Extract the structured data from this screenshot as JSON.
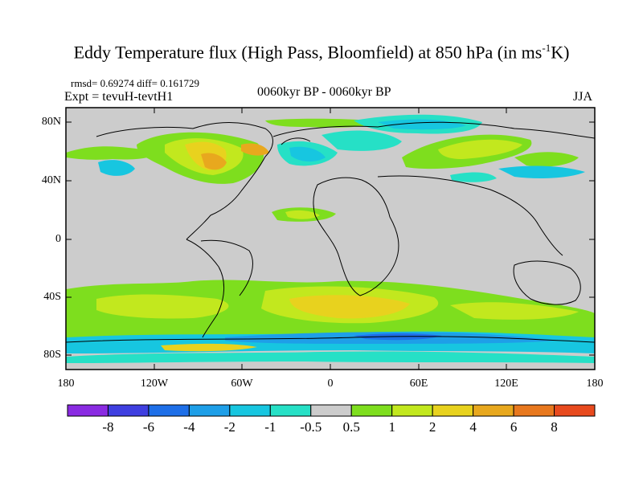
{
  "title_main": "Eddy Temperature flux (High Pass, Bloomfield) at 850 hPa (in ms",
  "title_sup": "-1",
  "title_end": "K)",
  "stats": "rmsd= 0.69274 diff= 0.161729",
  "expt": "Expt = tevuH-tevtH1",
  "period": "0060kyr BP - 0060kyr BP",
  "season": "JJA",
  "lat_ticks": [
    "80N",
    "40N",
    "0",
    "40S",
    "80S"
  ],
  "lon_ticks": [
    "180",
    "120W",
    "60W",
    "0",
    "60E",
    "120E",
    "180"
  ],
  "colorbar": {
    "labels": [
      "-8",
      "-6",
      "-4",
      "-2",
      "-1",
      "-0.5",
      "0.5",
      "1",
      "2",
      "4",
      "6",
      "8"
    ],
    "colors": [
      "#8a2be2",
      "#3f3fe0",
      "#1e6fe8",
      "#1e9fe8",
      "#17c6e0",
      "#26e0c6",
      "#cccccc",
      "#7ede1e",
      "#c2e81e",
      "#e8d21e",
      "#e8a81e",
      "#e8781e",
      "#e84a1e"
    ]
  },
  "field_colors": {
    "land_line": "#000000",
    "ocean_bg": "#cccccc"
  }
}
